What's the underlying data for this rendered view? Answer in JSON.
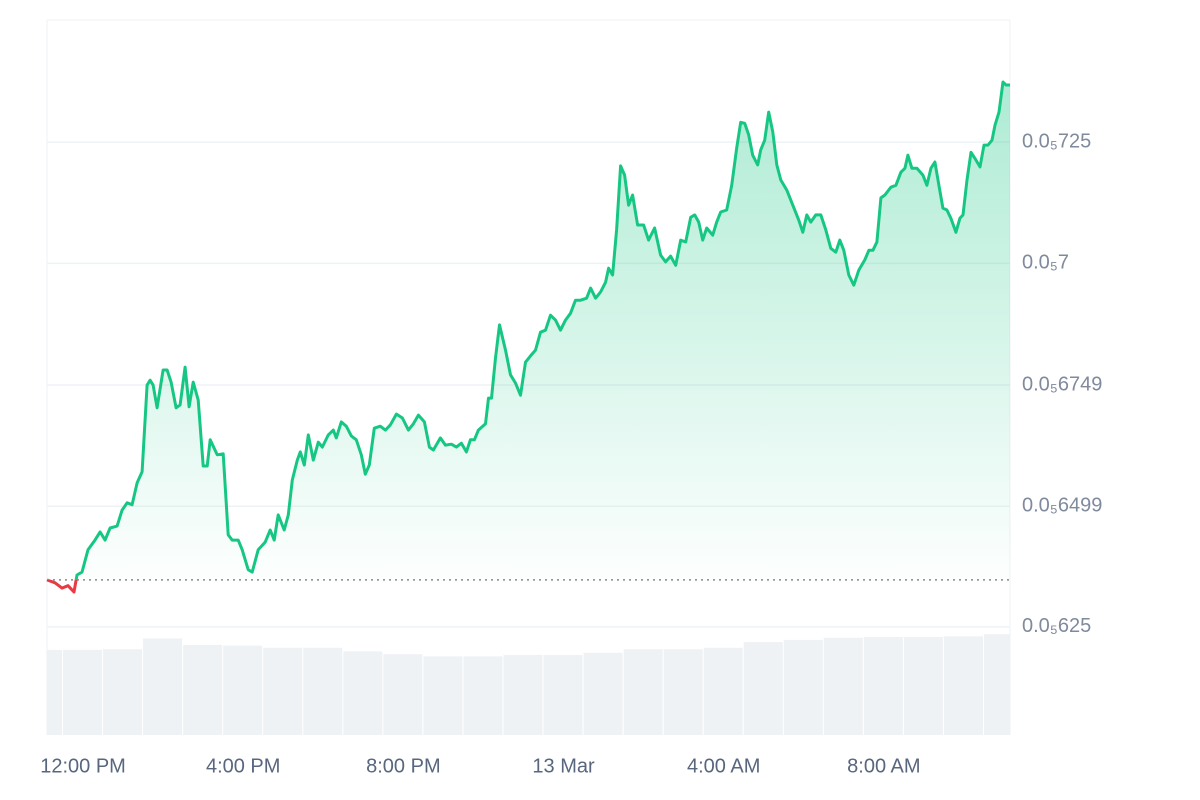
{
  "chart_data": {
    "type": "line",
    "x": [
      -0.9,
      -0.7,
      -0.525,
      -0.375,
      -0.225,
      -0.15,
      -0.025,
      0.125,
      0.3,
      0.425,
      0.55,
      0.675,
      0.85,
      0.975,
      1.1,
      1.225,
      1.35,
      1.475,
      1.6,
      1.675,
      1.75,
      1.85,
      2.0,
      2.1,
      2.2,
      2.325,
      2.425,
      2.55,
      2.65,
      2.75,
      2.875,
      3.0,
      3.1,
      3.175,
      3.35,
      3.5,
      3.625,
      3.725,
      3.875,
      3.975,
      4.125,
      4.225,
      4.375,
      4.55,
      4.675,
      4.775,
      4.875,
      5.025,
      5.125,
      5.225,
      5.35,
      5.425,
      5.525,
      5.625,
      5.75,
      5.875,
      5.975,
      6.125,
      6.25,
      6.325,
      6.45,
      6.575,
      6.7,
      6.825,
      6.95,
      7.05,
      7.15,
      7.275,
      7.425,
      7.55,
      7.675,
      7.825,
      7.975,
      8.125,
      8.25,
      8.375,
      8.525,
      8.65,
      8.75,
      8.925,
      9.05,
      9.2,
      9.325,
      9.45,
      9.575,
      9.675,
      9.775,
      9.875,
      10.05,
      10.125,
      10.2,
      10.3,
      10.4,
      10.55,
      10.675,
      10.8,
      10.925,
      11.05,
      11.175,
      11.3,
      11.425,
      11.55,
      11.675,
      11.8,
      11.925,
      12.05,
      12.175,
      12.3,
      12.425,
      12.575,
      12.675,
      12.8,
      12.925,
      13.05,
      13.125,
      13.225,
      13.325,
      13.425,
      13.525,
      13.625,
      13.725,
      13.85,
      14.0,
      14.125,
      14.275,
      14.425,
      14.55,
      14.675,
      14.8,
      14.925,
      15.05,
      15.175,
      15.275,
      15.375,
      15.475,
      15.575,
      15.725,
      15.825,
      15.925,
      16.075,
      16.2,
      16.325,
      16.425,
      16.525,
      16.625,
      16.725,
      16.85,
      16.925,
      17.025,
      17.125,
      17.225,
      17.325,
      17.425,
      17.575,
      17.725,
      17.875,
      17.975,
      18.075,
      18.175,
      18.3,
      18.425,
      18.55,
      18.675,
      18.8,
      18.9,
      19.0,
      19.125,
      19.25,
      19.375,
      19.525,
      19.625,
      19.725,
      19.825,
      19.925,
      20.025,
      20.175,
      20.3,
      20.425,
      20.525,
      20.6,
      20.7,
      20.825,
      20.975,
      21.075,
      21.175,
      21.275,
      21.375,
      21.475,
      21.575,
      21.675,
      21.8,
      21.9,
      21.975,
      22.075,
      22.175,
      22.3,
      22.4,
      22.5,
      22.6,
      22.7,
      22.775,
      22.875,
      22.975,
      23.05,
      23.15
    ],
    "series": [
      {
        "color": "#16c784",
        "color_below": "#ea3943",
        "values": [
          6.347e-06,
          6.341e-06,
          6.33e-06,
          6.335e-06,
          6.322e-06,
          6.357e-06,
          6.363e-06,
          6.409e-06,
          6.429e-06,
          6.446e-06,
          6.429e-06,
          6.454e-06,
          6.458e-06,
          6.491e-06,
          6.506e-06,
          6.502e-06,
          6.547e-06,
          6.57e-06,
          6.749e-06,
          6.759e-06,
          6.749e-06,
          6.702e-06,
          6.78e-06,
          6.78e-06,
          6.755e-06,
          6.702e-06,
          6.708e-06,
          6.786e-06,
          6.704e-06,
          6.755e-06,
          6.718e-06,
          6.582e-06,
          6.582e-06,
          6.636e-06,
          6.605e-06,
          6.607e-06,
          6.44e-06,
          6.429e-06,
          6.429e-06,
          6.409e-06,
          6.368e-06,
          6.363e-06,
          6.409e-06,
          6.425e-06,
          6.45e-06,
          6.429e-06,
          6.481e-06,
          6.45e-06,
          6.481e-06,
          6.553e-06,
          6.594e-06,
          6.611e-06,
          6.584e-06,
          6.646e-06,
          6.594e-06,
          6.631e-06,
          6.621e-06,
          6.646e-06,
          6.656e-06,
          6.64e-06,
          6.673e-06,
          6.664e-06,
          6.644e-06,
          6.636e-06,
          6.605e-06,
          6.565e-06,
          6.584e-06,
          6.66e-06,
          6.664e-06,
          6.656e-06,
          6.667e-06,
          6.689e-06,
          6.681e-06,
          6.656e-06,
          6.669e-06,
          6.687e-06,
          6.673e-06,
          6.621e-06,
          6.615e-06,
          6.64e-06,
          6.625e-06,
          6.627e-06,
          6.621e-06,
          6.629e-06,
          6.611e-06,
          6.636e-06,
          6.636e-06,
          6.656e-06,
          6.669e-06,
          6.722e-06,
          6.722e-06,
          6.805e-06,
          6.873e-06,
          6.821e-06,
          6.77e-06,
          6.753e-06,
          6.728e-06,
          6.796e-06,
          6.809e-06,
          6.821e-06,
          6.858e-06,
          6.862e-06,
          6.893e-06,
          6.883e-06,
          6.862e-06,
          6.883e-06,
          6.897e-06,
          6.924e-06,
          6.924e-06,
          6.928e-06,
          6.949e-06,
          6.928e-06,
          6.941e-06,
          6.961e-06,
          6.99e-06,
          6.976e-06,
          7.069e-06,
          7.201e-06,
          7.182e-06,
          7.12e-06,
          7.141e-06,
          7.079e-06,
          7.079e-06,
          7.048e-06,
          7.073e-06,
          7.017e-06,
          7.003e-06,
          7.015e-06,
          6.996e-06,
          7.048e-06,
          7.044e-06,
          7.095e-06,
          7.1e-06,
          7.085e-06,
          7.048e-06,
          7.073e-06,
          7.058e-06,
          7.085e-06,
          7.106e-06,
          7.11e-06,
          7.161e-06,
          7.238e-06,
          7.291e-06,
          7.289e-06,
          7.265e-06,
          7.223e-06,
          7.203e-06,
          7.234e-06,
          7.254e-06,
          7.312e-06,
          7.271e-06,
          7.203e-06,
          7.172e-06,
          7.151e-06,
          7.12e-06,
          7.089e-06,
          7.064e-06,
          7.1e-06,
          7.085e-06,
          7.1e-06,
          7.1e-06,
          7.069e-06,
          7.031e-06,
          7.023e-06,
          7.048e-06,
          7.027e-06,
          6.976e-06,
          6.955e-06,
          6.986e-06,
          7.007e-06,
          7.027e-06,
          7.027e-06,
          7.044e-06,
          7.135e-06,
          7.141e-06,
          7.157e-06,
          7.161e-06,
          7.188e-06,
          7.196e-06,
          7.223e-06,
          7.196e-06,
          7.196e-06,
          7.182e-06,
          7.161e-06,
          7.196e-06,
          7.209e-06,
          7.161e-06,
          7.114e-06,
          7.11e-06,
          7.093e-06,
          7.064e-06,
          7.093e-06,
          7.1e-06,
          7.172e-06,
          7.229e-06,
          7.213e-06,
          7.199e-06,
          7.244e-06,
          7.244e-06,
          7.254e-06,
          7.285e-06,
          7.312e-06,
          7.374e-06,
          7.368e-06,
          7.368e-06
        ]
      }
    ],
    "reference_line": 6.347e-06,
    "volume": {
      "axis": "y2",
      "color": "#eff2f5",
      "x": [
        -1,
        0,
        1,
        2,
        3,
        4,
        5,
        6,
        7,
        8,
        9,
        10,
        11,
        12,
        13,
        14,
        15,
        16,
        17,
        18,
        19,
        20,
        21,
        22,
        23
      ],
      "values": [
        11.9,
        11.9,
        12.0,
        13.5,
        12.6,
        12.5,
        12.2,
        12.2,
        11.7,
        11.3,
        11.0,
        11.0,
        11.2,
        11.2,
        11.5,
        12.0,
        12.0,
        12.2,
        13.0,
        13.3,
        13.6,
        13.7,
        13.7,
        13.8,
        14.1
      ]
    },
    "xlim": [
      -0.9,
      23.15
    ],
    "xticks": [
      {
        "value": 0,
        "label": "12:00 PM"
      },
      {
        "value": 4,
        "label": "4:00 PM"
      },
      {
        "value": 8,
        "label": "8:00 PM"
      },
      {
        "value": 12,
        "label": "13 Mar"
      },
      {
        "value": 16,
        "label": "4:00 AM"
      },
      {
        "value": 20,
        "label": "8:00 AM"
      }
    ],
    "ylim": [
      6.027e-06,
      7.502e-06
    ],
    "yticks": [
      {
        "value": 6.25e-06,
        "label": "0.0₅625"
      },
      {
        "value": 6.499e-06,
        "label": "0.0₅6499"
      },
      {
        "value": 6.749e-06,
        "label": "0.0₅6749"
      },
      {
        "value": 7e-06,
        "label": "0.0₅7"
      },
      {
        "value": 7.25e-06,
        "label": "0.0₅725"
      }
    ],
    "y2lim": [
      0,
      100
    ],
    "grid": true
  }
}
